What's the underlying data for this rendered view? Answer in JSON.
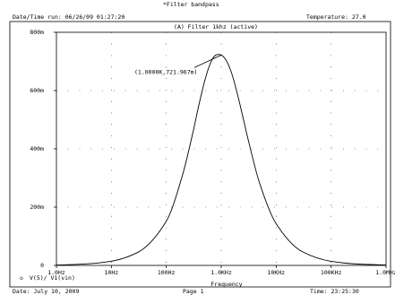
{
  "header": {
    "title": "*Filter bandpass",
    "datetime_run": "Date/Time run: 06/26/09 01:27:20",
    "temperature": "Temperature: 27.0"
  },
  "footer": {
    "date": "Date: July 10, 2009",
    "page": "Page 1",
    "time": "Time: 23:25:30"
  },
  "chart_data": {
    "type": "line",
    "title": "(A) Filter 1khz (active)",
    "xlabel": "Frequency",
    "ylabel": "",
    "xscale": "log",
    "xlim": [
      1,
      1000000
    ],
    "ylim": [
      0,
      0.8
    ],
    "grid": "dotted",
    "x_ticks": [
      {
        "value": 1,
        "label": "1.0Hz"
      },
      {
        "value": 10,
        "label": "10Hz"
      },
      {
        "value": 100,
        "label": "100Hz"
      },
      {
        "value": 1000,
        "label": "1.0KHz"
      },
      {
        "value": 10000,
        "label": "10KHz"
      },
      {
        "value": 100000,
        "label": "100KHz"
      },
      {
        "value": 1000000,
        "label": "1.0MHz"
      }
    ],
    "y_ticks": [
      {
        "value": 0,
        "label": "0"
      },
      {
        "value": 0.2,
        "label": "200m"
      },
      {
        "value": 0.4,
        "label": "400m"
      },
      {
        "value": 0.6,
        "label": "600m"
      },
      {
        "value": 0.8,
        "label": "800m"
      }
    ],
    "series": [
      {
        "name": "V(5)/ V1(vin)",
        "marker": "◇",
        "color": "#000000",
        "x": [
          1,
          3,
          10,
          30,
          100,
          200,
          300,
          400,
          500,
          600,
          700,
          800,
          900,
          1000,
          1200,
          1500,
          2000,
          2500,
          3000,
          5000,
          10000,
          30000,
          100000,
          300000,
          1000000
        ],
        "values": [
          0.0014,
          0.0043,
          0.0145,
          0.0444,
          0.152,
          0.314,
          0.45,
          0.558,
          0.633,
          0.682,
          0.71,
          0.722,
          0.724,
          0.722,
          0.707,
          0.667,
          0.583,
          0.506,
          0.442,
          0.282,
          0.143,
          0.047,
          0.0141,
          0.0046,
          0.0014
        ]
      }
    ],
    "annotations": [
      {
        "text": "(1.0000K,721.967m)",
        "x": 1000,
        "y": 0.722
      }
    ]
  }
}
